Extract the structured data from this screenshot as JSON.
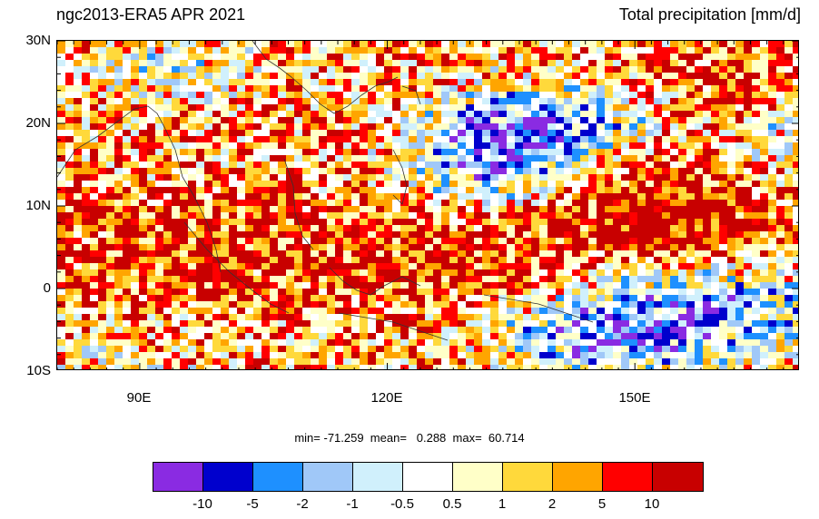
{
  "header": {
    "title_left": "ngc2013-ERA5 APR 2021",
    "title_right": "Total precipitation [mm/d]"
  },
  "axes": {
    "lat_labels": [
      "30N",
      "20N",
      "10N",
      "0",
      "10S"
    ],
    "lon_labels": [
      "90E",
      "120E",
      "150E"
    ],
    "lat_range": [
      -10,
      30
    ],
    "lon_range": [
      80,
      170
    ]
  },
  "stats": {
    "text": "min= -71.259  mean=   0.288  max=  60.714"
  },
  "colorbar": {
    "labels": [
      "-10",
      "-5",
      "-2",
      "-1",
      "-0.5",
      "0.5",
      "1",
      "2",
      "5",
      "10"
    ],
    "colors": [
      "#8a2be2",
      "#0000cd",
      "#1e90ff",
      "#a0c8f8",
      "#d0f0fc",
      "#ffffff",
      "#ffffc8",
      "#ffd93b",
      "#ffa500",
      "#ff0000",
      "#c80000"
    ]
  }
}
